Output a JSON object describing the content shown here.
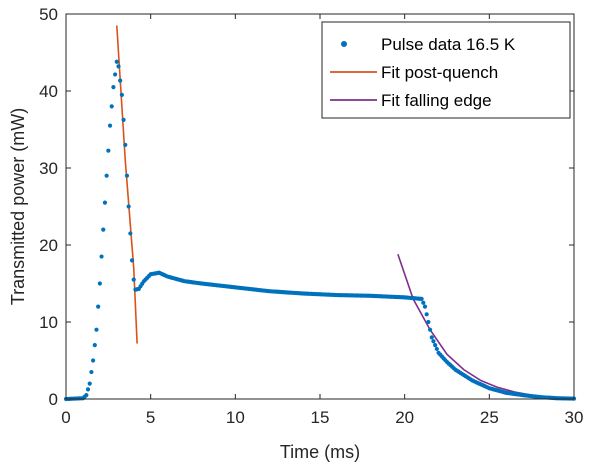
{
  "colors": {
    "data": "#0072BD",
    "fit_post_quench": "#D95319",
    "fit_falling_edge": "#7E2F8E",
    "axis": "#262626"
  },
  "chart_data": {
    "type": "scatter",
    "xlabel": "Time (ms)",
    "ylabel": "Transmitted power (mW)",
    "xlim": [
      0,
      30
    ],
    "ylim": [
      0,
      50
    ],
    "x_ticks": [
      0,
      5,
      10,
      15,
      20,
      25,
      30
    ],
    "y_ticks": [
      0,
      10,
      20,
      30,
      40,
      50
    ],
    "grid": false,
    "legend_position": "top-right",
    "legend": [
      "Pulse data 16.5 K",
      "Fit post-quench",
      "Fit falling edge"
    ],
    "series": [
      {
        "name": "Pulse data 16.5 K",
        "type": "scatter",
        "color_key": "data",
        "points": [
          [
            0.0,
            0.0
          ],
          [
            1.0,
            0.1
          ],
          [
            1.2,
            0.5
          ],
          [
            1.4,
            2.0
          ],
          [
            1.6,
            5.0
          ],
          [
            1.8,
            9.0
          ],
          [
            2.0,
            15.0
          ],
          [
            2.2,
            22.0
          ],
          [
            2.4,
            29.0
          ],
          [
            2.6,
            35.5
          ],
          [
            2.8,
            40.5
          ],
          [
            3.0,
            43.8
          ],
          [
            3.1,
            43.2
          ],
          [
            3.3,
            39.5
          ],
          [
            3.5,
            33.0
          ],
          [
            3.7,
            25.0
          ],
          [
            3.9,
            18.0
          ],
          [
            4.0,
            15.5
          ],
          [
            4.1,
            14.2
          ],
          [
            4.3,
            14.3
          ],
          [
            4.6,
            15.3
          ],
          [
            5.0,
            16.2
          ],
          [
            5.5,
            16.4
          ],
          [
            6.0,
            15.9
          ],
          [
            7.0,
            15.3
          ],
          [
            8.0,
            15.0
          ],
          [
            10.0,
            14.5
          ],
          [
            12.0,
            14.0
          ],
          [
            14.0,
            13.7
          ],
          [
            16.0,
            13.5
          ],
          [
            18.0,
            13.4
          ],
          [
            20.0,
            13.2
          ],
          [
            21.0,
            13.0
          ],
          [
            21.2,
            12.0
          ],
          [
            21.4,
            10.0
          ],
          [
            21.6,
            8.0
          ],
          [
            22.0,
            6.0
          ],
          [
            22.5,
            4.8
          ],
          [
            23.0,
            3.8
          ],
          [
            24.0,
            2.4
          ],
          [
            25.0,
            1.4
          ],
          [
            26.0,
            0.8
          ],
          [
            27.0,
            0.5
          ],
          [
            28.0,
            0.25
          ],
          [
            29.0,
            0.1
          ],
          [
            30.0,
            0.05
          ]
        ]
      },
      {
        "name": "Fit post-quench",
        "type": "line",
        "color_key": "fit_post_quench",
        "points": [
          [
            3.0,
            48.5
          ],
          [
            3.5,
            31.0
          ],
          [
            4.0,
            17.0
          ],
          [
            4.2,
            7.2
          ]
        ]
      },
      {
        "name": "Fit falling edge",
        "type": "line",
        "color_key": "fit_falling_edge",
        "points": [
          [
            19.6,
            18.8
          ],
          [
            20.5,
            13.0
          ],
          [
            21.5,
            9.0
          ],
          [
            22.5,
            5.8
          ],
          [
            23.5,
            3.8
          ],
          [
            24.5,
            2.4
          ],
          [
            25.5,
            1.5
          ],
          [
            26.5,
            0.9
          ],
          [
            27.5,
            0.5
          ],
          [
            28.5,
            0.25
          ],
          [
            29.5,
            0.1
          ]
        ]
      }
    ]
  }
}
